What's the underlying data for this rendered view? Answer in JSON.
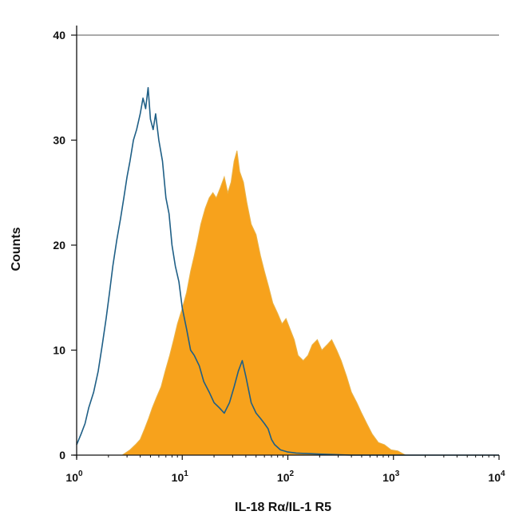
{
  "chart_data": {
    "type": "area",
    "title": "",
    "xlabel": "IL-18 Rα/IL-1 R5",
    "ylabel": "Counts",
    "x_scale": "log",
    "xlim": [
      1,
      10000
    ],
    "ylim": [
      0,
      40
    ],
    "y_ticks": [
      "0",
      "10",
      "20",
      "30",
      "40"
    ],
    "x_ticks": [
      {
        "base": "10",
        "exp": "0"
      },
      {
        "base": "10",
        "exp": "1"
      },
      {
        "base": "10",
        "exp": "2"
      },
      {
        "base": "10",
        "exp": "3"
      },
      {
        "base": "10",
        "exp": "4"
      }
    ],
    "grid": false,
    "series": [
      {
        "style": "outline",
        "color": "#1f5f86",
        "points": [
          [
            1.0,
            1
          ],
          [
            1.1,
            2
          ],
          [
            1.2,
            3
          ],
          [
            1.3,
            4.5
          ],
          [
            1.45,
            6
          ],
          [
            1.6,
            8
          ],
          [
            1.75,
            10.5
          ],
          [
            1.9,
            13
          ],
          [
            2.05,
            15.5
          ],
          [
            2.2,
            18
          ],
          [
            2.4,
            20.5
          ],
          [
            2.6,
            22.5
          ],
          [
            2.8,
            24.5
          ],
          [
            3.0,
            26.5
          ],
          [
            3.2,
            28
          ],
          [
            3.45,
            30
          ],
          [
            3.7,
            31
          ],
          [
            4.0,
            32.5
          ],
          [
            4.25,
            34
          ],
          [
            4.5,
            33
          ],
          [
            4.75,
            35
          ],
          [
            5.0,
            32
          ],
          [
            5.3,
            31
          ],
          [
            5.6,
            32.5
          ],
          [
            6.0,
            30
          ],
          [
            6.5,
            28
          ],
          [
            7.0,
            24.5
          ],
          [
            7.5,
            23
          ],
          [
            8.0,
            20
          ],
          [
            8.6,
            18
          ],
          [
            9.3,
            16.5
          ],
          [
            10.0,
            14
          ],
          [
            11.0,
            12
          ],
          [
            12.0,
            10
          ],
          [
            13.0,
            9.5
          ],
          [
            14.5,
            8.5
          ],
          [
            16.0,
            7
          ],
          [
            18.0,
            6
          ],
          [
            20.0,
            5
          ],
          [
            22.5,
            4.5
          ],
          [
            25.0,
            4
          ],
          [
            28.0,
            5
          ],
          [
            31.0,
            6.5
          ],
          [
            34.0,
            8
          ],
          [
            37.0,
            9
          ],
          [
            40.0,
            7.5
          ],
          [
            45.0,
            5
          ],
          [
            50.0,
            4
          ],
          [
            55.0,
            3.5
          ],
          [
            60.0,
            3
          ],
          [
            65.0,
            2.5
          ],
          [
            70.0,
            1.5
          ],
          [
            75.0,
            1
          ],
          [
            85.0,
            0.5
          ],
          [
            100.0,
            0.3
          ],
          [
            120.0,
            0.2
          ],
          [
            200.0,
            0.1
          ],
          [
            400.0,
            0
          ],
          [
            1000.0,
            0
          ],
          [
            10000.0,
            0
          ]
        ]
      },
      {
        "style": "filled",
        "color": "#f7a21c",
        "points": [
          [
            2.7,
            0
          ],
          [
            3.2,
            0.5
          ],
          [
            3.6,
            1
          ],
          [
            4.0,
            1.5
          ],
          [
            4.4,
            2.5
          ],
          [
            4.8,
            3.5
          ],
          [
            5.2,
            4.5
          ],
          [
            5.7,
            5.5
          ],
          [
            6.3,
            6.5
          ],
          [
            6.9,
            8
          ],
          [
            7.6,
            9.5
          ],
          [
            8.3,
            11
          ],
          [
            9.0,
            12.5
          ],
          [
            10.0,
            14
          ],
          [
            11.0,
            15.5
          ],
          [
            12.0,
            17.5
          ],
          [
            13.0,
            19
          ],
          [
            14.0,
            20.5
          ],
          [
            15.0,
            22
          ],
          [
            16.5,
            23.5
          ],
          [
            18.0,
            24.5
          ],
          [
            19.5,
            25
          ],
          [
            21.0,
            24.5
          ],
          [
            23.0,
            25.5
          ],
          [
            25.0,
            26.5
          ],
          [
            27.0,
            25
          ],
          [
            29.0,
            26
          ],
          [
            31.0,
            28
          ],
          [
            33.0,
            29
          ],
          [
            35.0,
            27
          ],
          [
            38.0,
            26
          ],
          [
            41.0,
            24
          ],
          [
            45.0,
            22
          ],
          [
            50.0,
            21
          ],
          [
            55.0,
            19
          ],
          [
            60.0,
            17.5
          ],
          [
            66.0,
            16
          ],
          [
            72.0,
            14.5
          ],
          [
            80.0,
            13.5
          ],
          [
            88.0,
            12.5
          ],
          [
            96.0,
            13
          ],
          [
            105.0,
            12
          ],
          [
            115.0,
            11
          ],
          [
            125.0,
            9.5
          ],
          [
            140.0,
            9
          ],
          [
            155.0,
            9.5
          ],
          [
            170.0,
            10.5
          ],
          [
            190.0,
            11
          ],
          [
            210.0,
            10
          ],
          [
            235.0,
            10.5
          ],
          [
            260.0,
            11
          ],
          [
            290.0,
            10
          ],
          [
            320.0,
            9
          ],
          [
            360.0,
            7.5
          ],
          [
            400.0,
            6
          ],
          [
            450.0,
            5
          ],
          [
            500.0,
            4
          ],
          [
            560.0,
            3
          ],
          [
            630.0,
            2
          ],
          [
            720.0,
            1.2
          ],
          [
            820.0,
            1
          ],
          [
            950.0,
            0.5
          ],
          [
            1100.0,
            0.4
          ],
          [
            1300.0,
            0
          ],
          [
            10000.0,
            0
          ]
        ]
      }
    ]
  }
}
